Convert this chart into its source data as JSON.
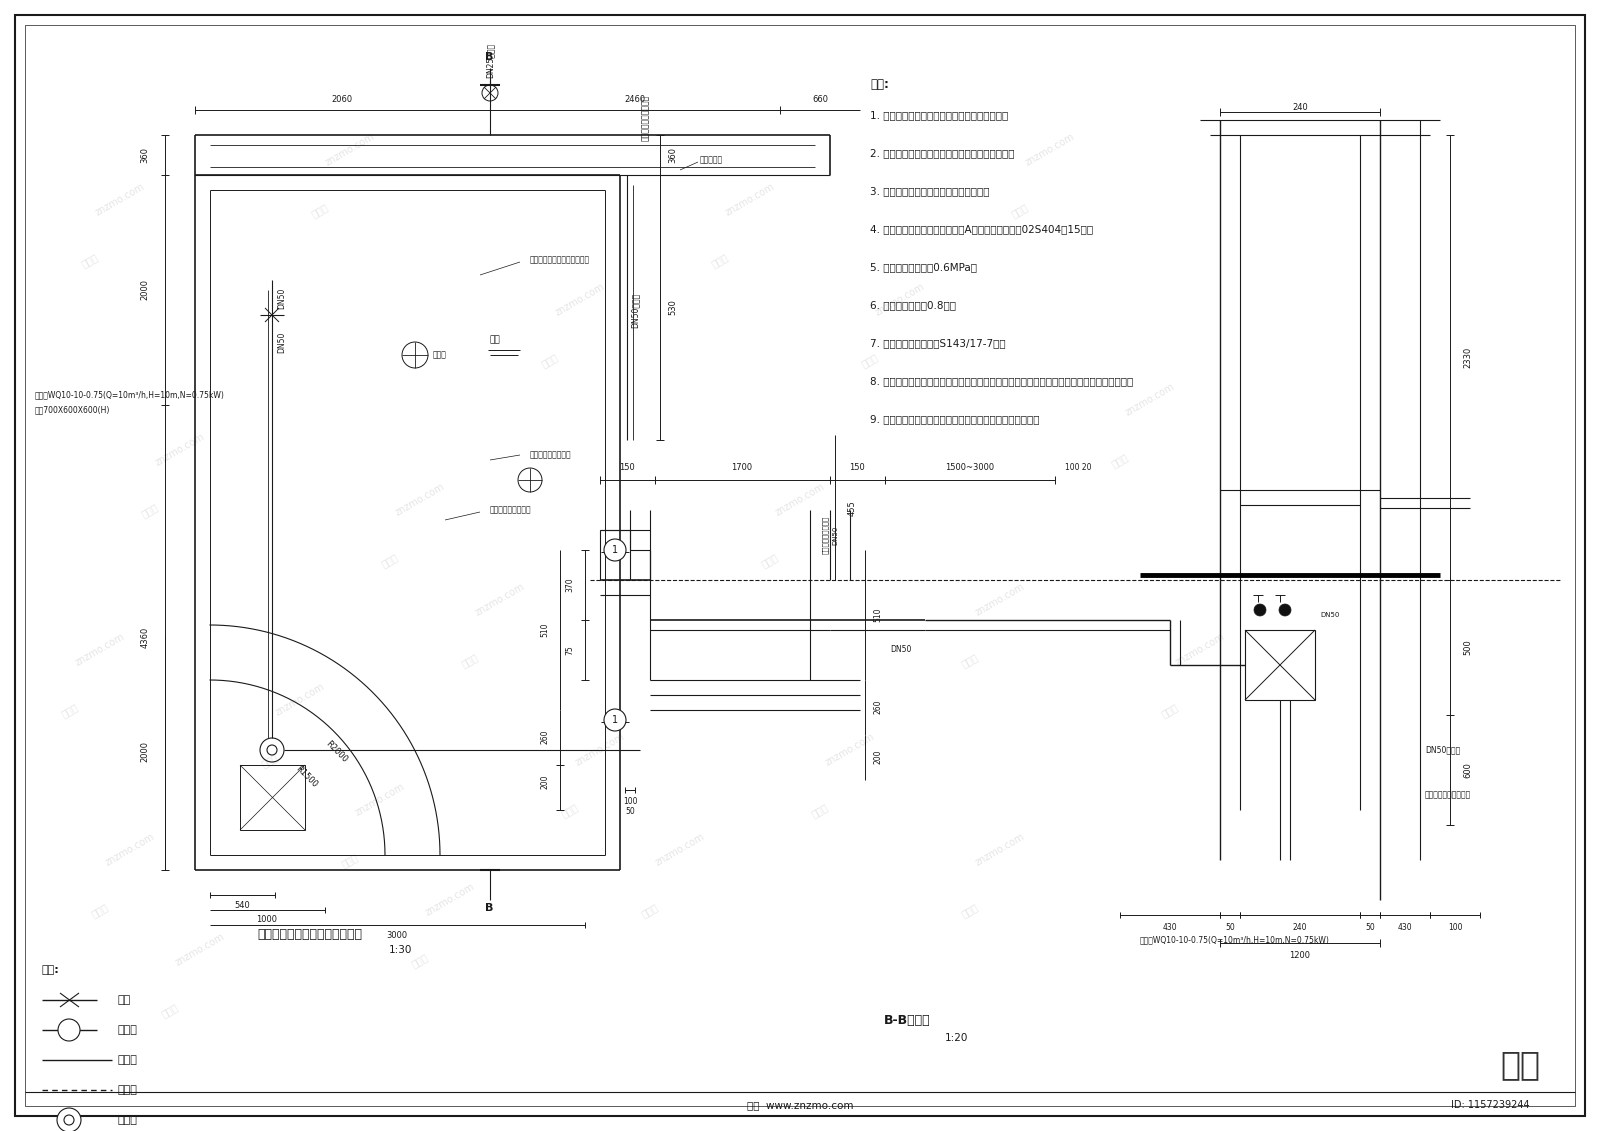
{
  "bg_color": "#ffffff",
  "line_color": "#1a1a1a",
  "fig_width": 16.0,
  "fig_height": 11.31,
  "notes_title": "说明:",
  "notes": [
    "1. 水景喷泉循环水管，采用不锈钢钢管，焊接。",
    "2. 水池补水管、溢水管采用镀锌钢管，丝扣连接。",
    "3. 镀锌钢管埋地部分采用三油两布防腐。",
    "4. 管道穿池壁采用刚性防水套管A型，做法参照国标02S404，15页。",
    "5. 给水管试验压力为0.6MPa。",
    "6. 给水埋深：大于0.8米。",
    "7. 阀门井做法参见国标S143/17-7页。",
    "8. 因甲方未提供溢水、泄水接口位置、标高，因此图中溢水管位置仅为示意，泄水采用动力泄",
    "9. 如现场情况与本设计有较大冲突，请及时与设计方协调。"
  ],
  "plan_title": "二号喷泉水池给排水管线平面图",
  "plan_scale": "1:30",
  "section_title": "B-B剖面图",
  "section_scale": "1:20",
  "legend_title": "图例:",
  "legend_items": [
    {
      "label": "阀门"
    },
    {
      "label": "阀门井"
    },
    {
      "label": "给水管"
    },
    {
      "label": "排水管"
    },
    {
      "label": "潜水泵"
    }
  ],
  "bottom_text": "知末  www.znzmo.com",
  "bottom_id": "ID: 1157239244"
}
